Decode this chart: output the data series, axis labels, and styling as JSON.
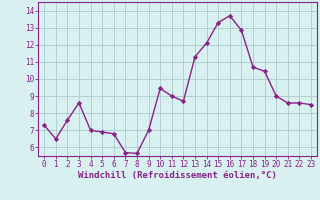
{
  "x": [
    0,
    1,
    2,
    3,
    4,
    5,
    6,
    7,
    8,
    9,
    10,
    11,
    12,
    13,
    14,
    15,
    16,
    17,
    18,
    19,
    20,
    21,
    22,
    23
  ],
  "y": [
    7.3,
    6.5,
    7.6,
    8.6,
    7.0,
    6.9,
    6.8,
    5.7,
    5.65,
    7.0,
    9.45,
    9.0,
    8.7,
    11.3,
    12.1,
    13.3,
    13.7,
    12.85,
    10.7,
    10.45,
    9.0,
    8.6,
    8.6,
    8.5
  ],
  "line_color": "#882288",
  "marker": "D",
  "marker_size": 2.2,
  "bg_color": "#d8f0f0",
  "grid_color": "#aacccc",
  "xlabel": "Windchill (Refroidissement éolien,°C)",
  "xlim": [
    -0.5,
    23.5
  ],
  "ylim": [
    5.5,
    14.5
  ],
  "yticks": [
    6,
    7,
    8,
    9,
    10,
    11,
    12,
    13,
    14
  ],
  "xticks": [
    0,
    1,
    2,
    3,
    4,
    5,
    6,
    7,
    8,
    9,
    10,
    11,
    12,
    13,
    14,
    15,
    16,
    17,
    18,
    19,
    20,
    21,
    22,
    23
  ],
  "tick_fontsize": 5.5,
  "xlabel_fontsize": 6.5,
  "spine_color": "#882288",
  "linewidth": 1.0
}
